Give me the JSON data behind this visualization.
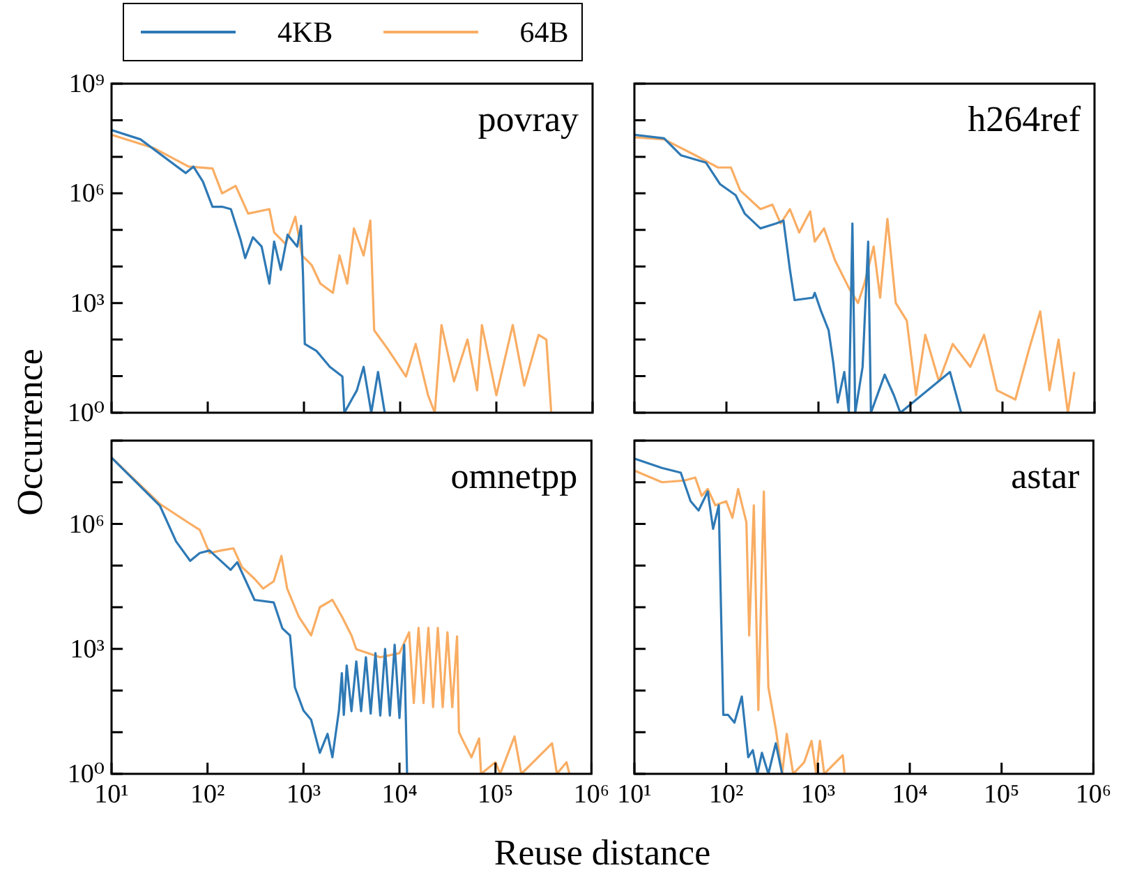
{
  "chart_data": [
    {
      "type": "line",
      "title": "povray",
      "ylabel": "Occurrence",
      "legend": "top",
      "log": "xy",
      "tick_labels": "y",
      "xlim": [
        10,
        1000000
      ],
      "ylim": [
        1,
        1000000000
      ],
      "xticks": [
        {
          "value": 10,
          "label": null
        },
        {
          "value": 100,
          "label": null
        },
        {
          "value": 1000,
          "label": null
        },
        {
          "value": 10000,
          "label": null
        },
        {
          "value": 100000,
          "label": null
        },
        {
          "value": 1000000,
          "label": null
        }
      ],
      "yticks": [
        {
          "value": 1,
          "label": "10⁰"
        },
        {
          "value": 10,
          "label": null
        },
        {
          "value": 100,
          "label": null
        },
        {
          "value": 1000,
          "label": "10³"
        },
        {
          "value": 10000,
          "label": null
        },
        {
          "value": 100000,
          "label": null
        },
        {
          "value": 1000000,
          "label": "10⁶"
        },
        {
          "value": 10000000,
          "label": null
        },
        {
          "value": 100000000,
          "label": null
        },
        {
          "value": 1000000000,
          "label": "10⁹"
        }
      ],
      "series": [
        {
          "name": "4KB",
          "color": "#2e79b5",
          "x": [
            10,
            20,
            59,
            71,
            89,
            112,
            141,
            174,
            219,
            245,
            295,
            363,
            437,
            490,
            575,
            676,
            851,
            933,
            977,
            1020,
            1350,
            1860,
            2510,
            2630,
            3550,
            4170,
            5010,
            5890,
            6920
          ],
          "values": [
            54000000,
            30000000,
            3600000,
            5400000,
            2100000,
            430000,
            430000,
            370000,
            55000,
            17000,
            63000,
            35000,
            3400,
            48000,
            8100,
            74000,
            35000,
            130000,
            6200,
            76,
            49,
            18,
            9.8,
            1,
            4.1,
            18,
            1,
            13,
            1
          ]
        },
        {
          "name": "64B",
          "color": "#f9ad63",
          "x": [
            10,
            28,
            63,
            112,
            141,
            195,
            263,
            437,
            490,
            646,
            813,
            955,
            1200,
            1480,
            2000,
            2340,
            2820,
            3310,
            4170,
            4900,
            5370,
            7410,
            11500,
            14500,
            19500,
            22900,
            26900,
            36300,
            50100,
            63100,
            70800,
            100000,
            148000,
            195000,
            275000,
            331000,
            372000
          ],
          "values": [
            40000000,
            17000000,
            5400000,
            4800000,
            1000000,
            1600000,
            280000,
            370000,
            85000,
            41000,
            230000,
            20000,
            11000,
            3400,
            1900,
            20000,
            3400,
            110000,
            20000,
            180000,
            180,
            56,
            9.8,
            76,
            3,
            1,
            250,
            7.2,
            100,
            4.1,
            250,
            3,
            250,
            5.5,
            135,
            100,
            1
          ]
        }
      ]
    },
    {
      "type": "line",
      "title": "h264ref",
      "log": "xy",
      "tick_labels": false,
      "xlim": [
        10,
        1000000
      ],
      "ylim": [
        1,
        1000000000
      ],
      "xticks": [
        {
          "value": 10,
          "label": null
        },
        {
          "value": 100,
          "label": null
        },
        {
          "value": 1000,
          "label": null
        },
        {
          "value": 10000,
          "label": null
        },
        {
          "value": 100000,
          "label": null
        },
        {
          "value": 1000000,
          "label": null
        }
      ],
      "yticks": [
        {
          "value": 1,
          "label": null
        },
        {
          "value": 10,
          "label": null
        },
        {
          "value": 100,
          "label": null
        },
        {
          "value": 1000,
          "label": null
        },
        {
          "value": 10000,
          "label": null
        },
        {
          "value": 100000,
          "label": null
        },
        {
          "value": 1000000,
          "label": null
        },
        {
          "value": 10000000,
          "label": null
        },
        {
          "value": 100000000,
          "label": null
        },
        {
          "value": 1000000000,
          "label": null
        }
      ],
      "series": [
        {
          "color": "#2e79b5",
          "x": [
            10,
            21,
            32,
            60,
            85,
            126,
            158,
            234,
            347,
            417,
            490,
            550,
            871,
            912,
            1070,
            1290,
            1450,
            1620,
            1910,
            2140,
            2340,
            2510,
            3020,
            3470,
            3720,
            5250,
            6610,
            7760,
            26900,
            35500
          ],
          "values": [
            40000000,
            32000000,
            11000000,
            6900000,
            1800000,
            890000,
            280000,
            110000,
            150000,
            180000,
            8100,
            1200,
            1400,
            1900,
            590,
            180,
            23,
            1.9,
            13,
            1,
            150000,
            1,
            18,
            48000,
            1,
            11,
            3,
            1,
            13,
            1
          ]
        },
        {
          "color": "#f9ad63",
          "x": [
            10,
            21,
            46,
            81,
            112,
            141,
            234,
            316,
            389,
            490,
            617,
            813,
            912,
            1150,
            1510,
            2140,
            2690,
            3160,
            3980,
            4680,
            5620,
            6920,
            9120,
            11500,
            14500,
            20400,
            28800,
            44700,
            63100,
            87100,
            138000,
            195000,
            257000,
            324000,
            407000,
            513000,
            603000
          ],
          "values": [
            34000000,
            30000000,
            11000000,
            5100000,
            5100000,
            1200000,
            370000,
            490000,
            150000,
            370000,
            85000,
            320000,
            48000,
            110000,
            15000,
            2600,
            1000,
            3400,
            35000,
            1400,
            200000,
            1000,
            330,
            3,
            135,
            7.2,
            76,
            18,
            135,
            4.1,
            2.3,
            56,
            590,
            4.1,
            100,
            1,
            13
          ]
        }
      ]
    },
    {
      "type": "line",
      "title": "omnetpp",
      "xlabel": "Reuse distance",
      "log": "xy",
      "xlim": [
        10,
        1000000
      ],
      "ylim": [
        1,
        100000000
      ],
      "xticks": [
        {
          "value": 10,
          "label": "10¹"
        },
        {
          "value": 100,
          "label": "10²"
        },
        {
          "value": 1000,
          "label": "10³"
        },
        {
          "value": 10000,
          "label": "10⁴"
        },
        {
          "value": 100000,
          "label": "10⁵"
        },
        {
          "value": 1000000,
          "label": "10⁶"
        }
      ],
      "yticks": [
        {
          "value": 1,
          "label": "10⁰"
        },
        {
          "value": 10,
          "label": null
        },
        {
          "value": 100,
          "label": null
        },
        {
          "value": 1000,
          "label": "10³"
        },
        {
          "value": 10000,
          "label": null
        },
        {
          "value": 100000,
          "label": null
        },
        {
          "value": 1000000,
          "label": "10⁶"
        },
        {
          "value": 10000000,
          "label": null
        },
        {
          "value": 100000000,
          "label": null
        }
      ],
      "series": [
        {
          "color": "#2e79b5",
          "x": [
            10,
            32,
            47,
            66,
            83,
            105,
            174,
            204,
            309,
            490,
            603,
            724,
            813,
            1000,
            1200,
            1480,
            1780,
            2000,
            2340,
            2510,
            2630,
            2820,
            3160,
            3550,
            3980,
            4470,
            5010,
            5620,
            6310,
            7080,
            7940,
            8910,
            10000,
            11200,
            12000
          ],
          "values": [
            39000000,
            2700000,
            380000,
            130000,
            200000,
            230000,
            79000,
            120000,
            15000,
            13000,
            3100,
            2100,
            120,
            33,
            20,
            3.2,
            9.1,
            2.5,
            33,
            260,
            26,
            400,
            32,
            500,
            32,
            630,
            28,
            790,
            25,
            1000,
            25,
            1260,
            22,
            1260,
            1
          ]
        },
        {
          "color": "#f9ad63",
          "x": [
            10,
            32,
            62,
            83,
            105,
            138,
            186,
            229,
            309,
            380,
            490,
            589,
            676,
            891,
            1200,
            1480,
            2000,
            2510,
            3160,
            3550,
            6310,
            10000,
            12600,
            14100,
            15800,
            17800,
            20000,
            22400,
            25100,
            28200,
            31600,
            35500,
            39800,
            41700,
            44700,
            56200,
            67600,
            70800,
            100000,
            112000,
            158000,
            186000,
            389000,
            437000,
            550000,
            589000
          ],
          "values": [
            39000000,
            3000000,
            1100000,
            720000,
            200000,
            230000,
            260000,
            91000,
            48000,
            28000,
            42000,
            170000,
            28000,
            6000,
            2100,
            10000,
            15000,
            6000,
            2100,
            980,
            630,
            790,
            2500,
            50,
            3200,
            50,
            3200,
            40,
            3200,
            40,
            2500,
            40,
            2000,
            10,
            7.1,
            2.5,
            7.1,
            1,
            1.9,
            1,
            7.9,
            1,
            5.4,
            1,
            1.9,
            1
          ]
        }
      ]
    },
    {
      "type": "line",
      "title": "astar",
      "log": "xy",
      "tick_labels": "x",
      "xlim": [
        10,
        1000000
      ],
      "ylim": [
        1,
        100000000
      ],
      "xticks": [
        {
          "value": 10,
          "label": "10¹"
        },
        {
          "value": 100,
          "label": "10²"
        },
        {
          "value": 1000,
          "label": "10³"
        },
        {
          "value": 10000,
          "label": "10⁴"
        },
        {
          "value": 100000,
          "label": "10⁵"
        },
        {
          "value": 1000000,
          "label": "10⁶"
        }
      ],
      "yticks": [
        {
          "value": 1,
          "label": null
        },
        {
          "value": 10,
          "label": null
        },
        {
          "value": 100,
          "label": null
        },
        {
          "value": 1000,
          "label": null
        },
        {
          "value": 10000,
          "label": null
        },
        {
          "value": 100000,
          "label": null
        },
        {
          "value": 1000000,
          "label": null
        },
        {
          "value": 10000000,
          "label": null
        },
        {
          "value": 100000000,
          "label": null
        }
      ],
      "series": [
        {
          "color": "#2e79b5",
          "x": [
            10,
            20,
            32,
            41,
            50,
            63,
            72,
            83,
            93,
            105,
            123,
            148,
            174,
            195,
            219,
            245,
            288,
            347,
            407
          ],
          "values": [
            37000000,
            22000000,
            17000000,
            3500000,
            2100000,
            6000000,
            760000,
            2800000,
            26,
            26,
            17,
            72,
            2.5,
            3.7,
            1,
            3.2,
            1,
            5.4,
            1
          ]
        },
        {
          "color": "#f9ad63",
          "x": [
            10,
            20,
            35,
            46,
            54,
            63,
            76,
            100,
            117,
            135,
            166,
            178,
            200,
            224,
            257,
            288,
            347,
            407,
            457,
            537,
            708,
            851,
            955,
            1050,
            1170,
            1860,
            1950
          ],
          "values": [
            19000000,
            10000000,
            11000000,
            13000000,
            4700000,
            6900000,
            2800000,
            3500000,
            1400000,
            6900000,
            1100000,
            2100,
            2800000,
            34,
            6000000,
            120,
            12,
            1,
            9.1,
            1,
            1.9,
            6.2,
            1,
            6.2,
            1,
            2.8,
            1
          ]
        }
      ]
    }
  ]
}
